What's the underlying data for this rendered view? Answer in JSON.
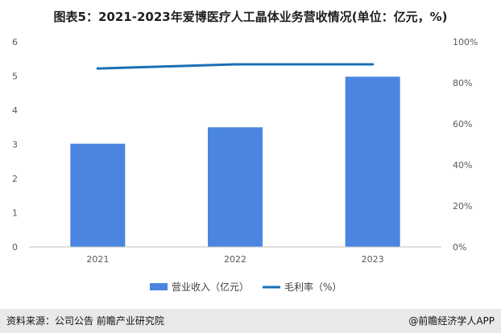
{
  "title": "图表5：2021-2023年爱博医疗人工晶体业务营收情况(单位：亿元，%)",
  "chart_data": {
    "type": "bar",
    "categories": [
      "2021",
      "2022",
      "2023"
    ],
    "series": [
      {
        "name": "营业收入（亿元）",
        "type": "bar",
        "axis": "left",
        "values": [
          3.02,
          3.5,
          4.98
        ],
        "color": "#4a86e0"
      },
      {
        "name": "毛利率（%）",
        "type": "line",
        "axis": "right",
        "values": [
          87,
          89,
          89
        ],
        "color": "#1a6fb5"
      }
    ],
    "y_left": {
      "min": 0,
      "max": 6,
      "ticks": [
        "0",
        "1",
        "2",
        "3",
        "4",
        "5",
        "6"
      ]
    },
    "y_right": {
      "min": 0,
      "max": 100,
      "ticks": [
        "0%",
        "20%",
        "40%",
        "60%",
        "80%",
        "100%"
      ]
    },
    "grid": false,
    "legend_position": "bottom"
  },
  "footer": {
    "source": "资料来源：公司公告 前瞻产业研究院",
    "brand": "@前瞻经济学人APP"
  }
}
